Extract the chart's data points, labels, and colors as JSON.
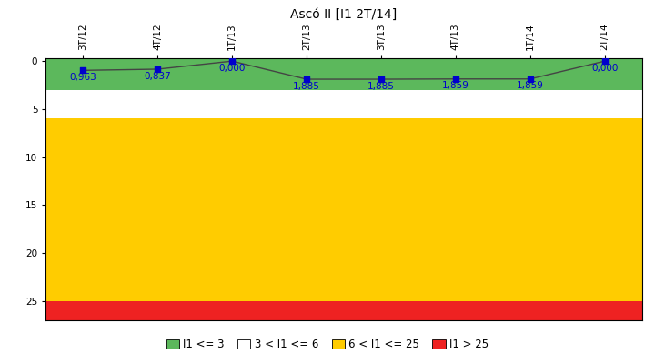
{
  "title": "Ascó II [I1 2T/14]",
  "x_labels": [
    "3T/12",
    "4T/12",
    "1T/13",
    "2T/13",
    "3T/13",
    "4T/13",
    "1T/14",
    "2T/14"
  ],
  "y_values": [
    0.963,
    0.837,
    0.0,
    1.885,
    1.885,
    1.859,
    1.859,
    0.0
  ],
  "y_labels_display": [
    "0,963",
    "0,837",
    "0,000",
    "1,885",
    "1,885",
    "1,859",
    "1,859",
    "0,000"
  ],
  "ylim_min": -0.3,
  "ylim_max": 27,
  "yticks": [
    0,
    5,
    10,
    15,
    20,
    25
  ],
  "zone_green_max": 3,
  "zone_white_max": 6,
  "zone_yellow_max": 25,
  "zone_red_max": 27,
  "color_green": "#5CB85C",
  "color_white": "#FFFFFF",
  "color_yellow": "#FFCC00",
  "color_red": "#EE2222",
  "line_color": "#444444",
  "marker_color": "#0000CC",
  "label_color": "#0000CC",
  "legend_labels": [
    "I1 <= 3",
    "3 < I1 <= 6",
    "6 < I1 <= 25",
    "I1 > 25"
  ],
  "title_fontsize": 10,
  "tick_fontsize": 7.5,
  "label_fontsize": 7.5
}
